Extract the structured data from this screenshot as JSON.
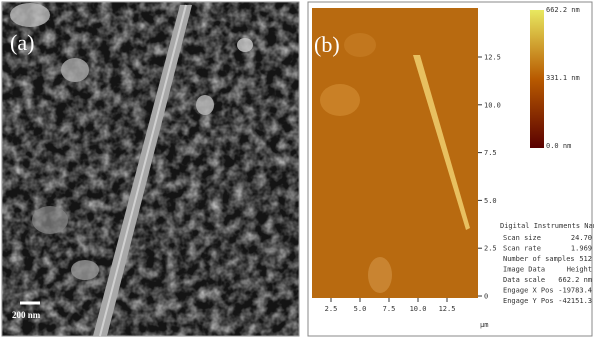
{
  "panels": [
    {
      "label": "(a)",
      "scale_bar": "200 nm"
    },
    {
      "label": "(b)",
      "y_ticks": [
        "12.5",
        "10.0",
        "7.5",
        "5.0",
        "2.5",
        "0"
      ],
      "x_ticks": [
        "2.5",
        "5.0",
        "7.5",
        "10.0",
        "12.5"
      ],
      "x_unit": "µm",
      "colorbar": [
        "662.2 nm",
        "331.1 nm",
        "0.0 nm"
      ],
      "info": {
        "title": "Digital Instruments NanoSco",
        "rows": [
          [
            "Scan size",
            "24.70"
          ],
          [
            "Scan rate",
            "1.969"
          ],
          [
            "Number of samples",
            "512"
          ],
          [
            "Image Data",
            "Height"
          ],
          [
            "Data scale",
            "662.2 nm"
          ],
          [
            "Engage X Pos",
            "-19783.4"
          ],
          [
            "Engage Y Pos",
            "-42151.3"
          ]
        ]
      }
    }
  ]
}
